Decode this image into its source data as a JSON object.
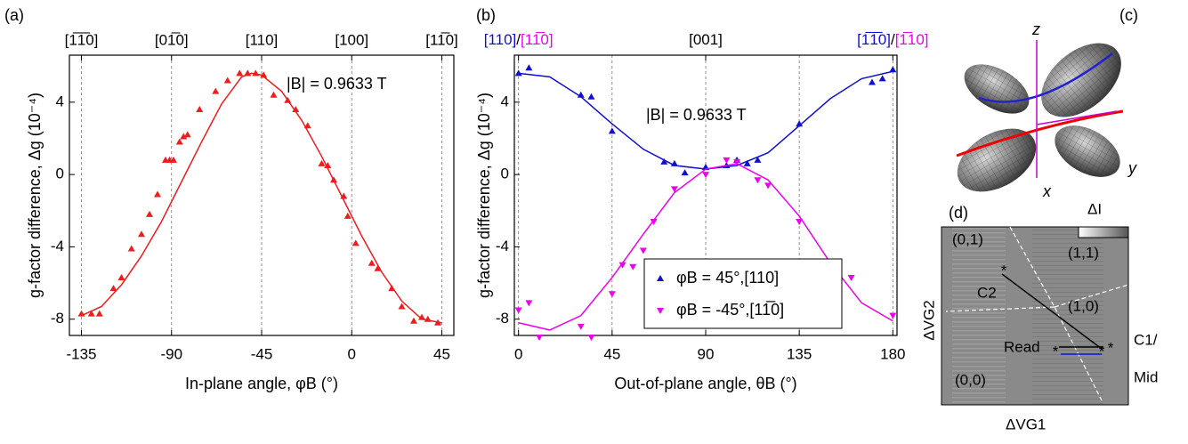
{
  "chart_data": [
    {
      "type": "scatter",
      "panel_label": "(a)",
      "xlabel": "In-plane angle, φB (°)",
      "ylabel": "g-factor difference, Δg (10⁻⁴)",
      "annotation": "|B| = 0.9633 T",
      "xlim": [
        -141,
        51
      ],
      "ylim": [
        -8.9,
        6.6
      ],
      "xticks": [
        -135,
        -90,
        -45,
        0,
        45
      ],
      "yticks": [
        -8,
        -4,
        0,
        4
      ],
      "grid": "x",
      "top_ticks": [
        {
          "value": -135,
          "label": "[1̅1̅0]"
        },
        {
          "value": -90,
          "label": "[01̅0]"
        },
        {
          "value": -45,
          "label": "[110]"
        },
        {
          "value": 0,
          "label": "[100]"
        },
        {
          "value": 45,
          "label": "[11̅0]"
        }
      ],
      "series": [
        {
          "kind": "points",
          "marker": "^",
          "color": "#ee1c1c",
          "x": [
            -135,
            -130,
            -126,
            -119,
            -115,
            -110,
            -105,
            -101,
            -97,
            -93,
            -91,
            -89,
            -86,
            -84,
            -82,
            -76,
            -68,
            -62,
            -56,
            -52,
            -48,
            -44,
            -39,
            -32,
            -28,
            -22,
            -15,
            -12,
            -9,
            -4,
            -2,
            2,
            10,
            13,
            20,
            25,
            31,
            35,
            38,
            43
          ],
          "y": [
            -7.7,
            -7.7,
            -7.7,
            -6.3,
            -5.7,
            -4.1,
            -3.3,
            -2.2,
            -1.1,
            0.8,
            0.8,
            0.8,
            1.8,
            2.1,
            2.2,
            3.6,
            4.6,
            5.2,
            5.6,
            5.6,
            5.6,
            5.5,
            4.4,
            4.1,
            3.6,
            2.7,
            0.6,
            0.5,
            -0.3,
            -1.2,
            -2.3,
            -3.8,
            -4.9,
            -5.2,
            -6.3,
            -7.3,
            -8.1,
            -7.9,
            -8.0,
            -8.2
          ]
        },
        {
          "kind": "line",
          "color": "#ee1c1c",
          "x": [
            -135,
            -125,
            -115,
            -105,
            -95,
            -85,
            -75,
            -65,
            -55,
            -50,
            -45,
            -35,
            -25,
            -15,
            -5,
            5,
            15,
            25,
            35,
            45
          ],
          "y": [
            -7.8,
            -7.3,
            -6.1,
            -4.5,
            -2.6,
            -0.4,
            1.8,
            3.9,
            5.4,
            5.6,
            5.5,
            4.6,
            3.0,
            1.0,
            -1.2,
            -3.4,
            -5.4,
            -7.0,
            -8.0,
            -8.2
          ]
        }
      ]
    },
    {
      "type": "scatter",
      "panel_label": "(b)",
      "xlabel": "Out-of-plane angle, θB (°)",
      "ylabel": "g-factor difference, Δg (10⁻⁴)",
      "annotation": "|B| = 0.9633 T",
      "xlim": [
        -2,
        182
      ],
      "ylim": [
        -8.9,
        6.6
      ],
      "xticks": [
        0,
        45,
        90,
        135,
        180
      ],
      "yticks": [
        -8,
        -4,
        0,
        4
      ],
      "grid": "x",
      "legend": "lower right",
      "top_ticks": [
        {
          "value": 0,
          "label": [
            "[110]",
            "/",
            "[11̅0]"
          ]
        },
        {
          "value": 90,
          "label": [
            "[001]"
          ]
        },
        {
          "value": 180,
          "label": [
            "[1̅1̅0]",
            "/",
            "[1̅10]"
          ]
        }
      ],
      "top_tick_colors": [
        "#1010d0",
        "#000000",
        "#ee00ee"
      ],
      "series": [
        {
          "kind": "points",
          "marker": "^",
          "color": "#1010d0",
          "name": "φB =  45°,[110]",
          "x": [
            0,
            5,
            30,
            35,
            45,
            70,
            75,
            80,
            90,
            100,
            105,
            110,
            115,
            135,
            170,
            175,
            180
          ],
          "y": [
            5.6,
            5.9,
            4.4,
            4.3,
            2.4,
            0.7,
            0.6,
            0.1,
            0.4,
            0.5,
            0.8,
            0.6,
            0.8,
            2.8,
            5.1,
            5.3,
            5.8
          ]
        },
        {
          "kind": "points",
          "marker": "v",
          "color": "#ee00ee",
          "name": "φB = -45°,[11̅0]",
          "x": [
            0,
            5,
            10,
            30,
            35,
            45,
            50,
            55,
            60,
            65,
            75,
            90,
            100,
            105,
            115,
            120,
            135,
            160,
            180
          ],
          "y": [
            -7.5,
            -7.1,
            -9.0,
            -8.4,
            -9.0,
            -6.6,
            -5.0,
            -5.1,
            -4.2,
            -2.6,
            -0.8,
            0.0,
            0.8,
            0.7,
            -0.3,
            -0.6,
            -2.6,
            -5.7,
            -7.8
          ]
        },
        {
          "kind": "line",
          "color": "#1010d0",
          "x": [
            0,
            15,
            30,
            45,
            60,
            75,
            90,
            105,
            120,
            135,
            150,
            165,
            180
          ],
          "y": [
            5.6,
            5.4,
            4.3,
            2.8,
            1.4,
            0.5,
            0.3,
            0.5,
            1.2,
            2.7,
            4.2,
            5.3,
            5.7
          ]
        },
        {
          "kind": "line",
          "color": "#ee00ee",
          "x": [
            0,
            15,
            30,
            45,
            60,
            75,
            90,
            105,
            120,
            135,
            150,
            165,
            180
          ],
          "y": [
            -8.2,
            -8.6,
            -7.8,
            -5.7,
            -3.3,
            -1.0,
            0.3,
            0.6,
            -0.3,
            -2.3,
            -4.9,
            -7.1,
            -8.1
          ]
        }
      ]
    }
  ],
  "panel_c": {
    "label": "(c)",
    "axes": [
      "z",
      "y",
      "x"
    ]
  },
  "panel_d": {
    "label": "(d)",
    "colorbar": "ΔI",
    "states": [
      "(0,1)",
      "(1,1)",
      "(1,0)",
      "(0,0)"
    ],
    "c2": "C2",
    "read": "Read",
    "c1": "C1/",
    "mid": "Mid",
    "x_axis": "ΔVG1",
    "y_axis": "ΔVG2"
  }
}
